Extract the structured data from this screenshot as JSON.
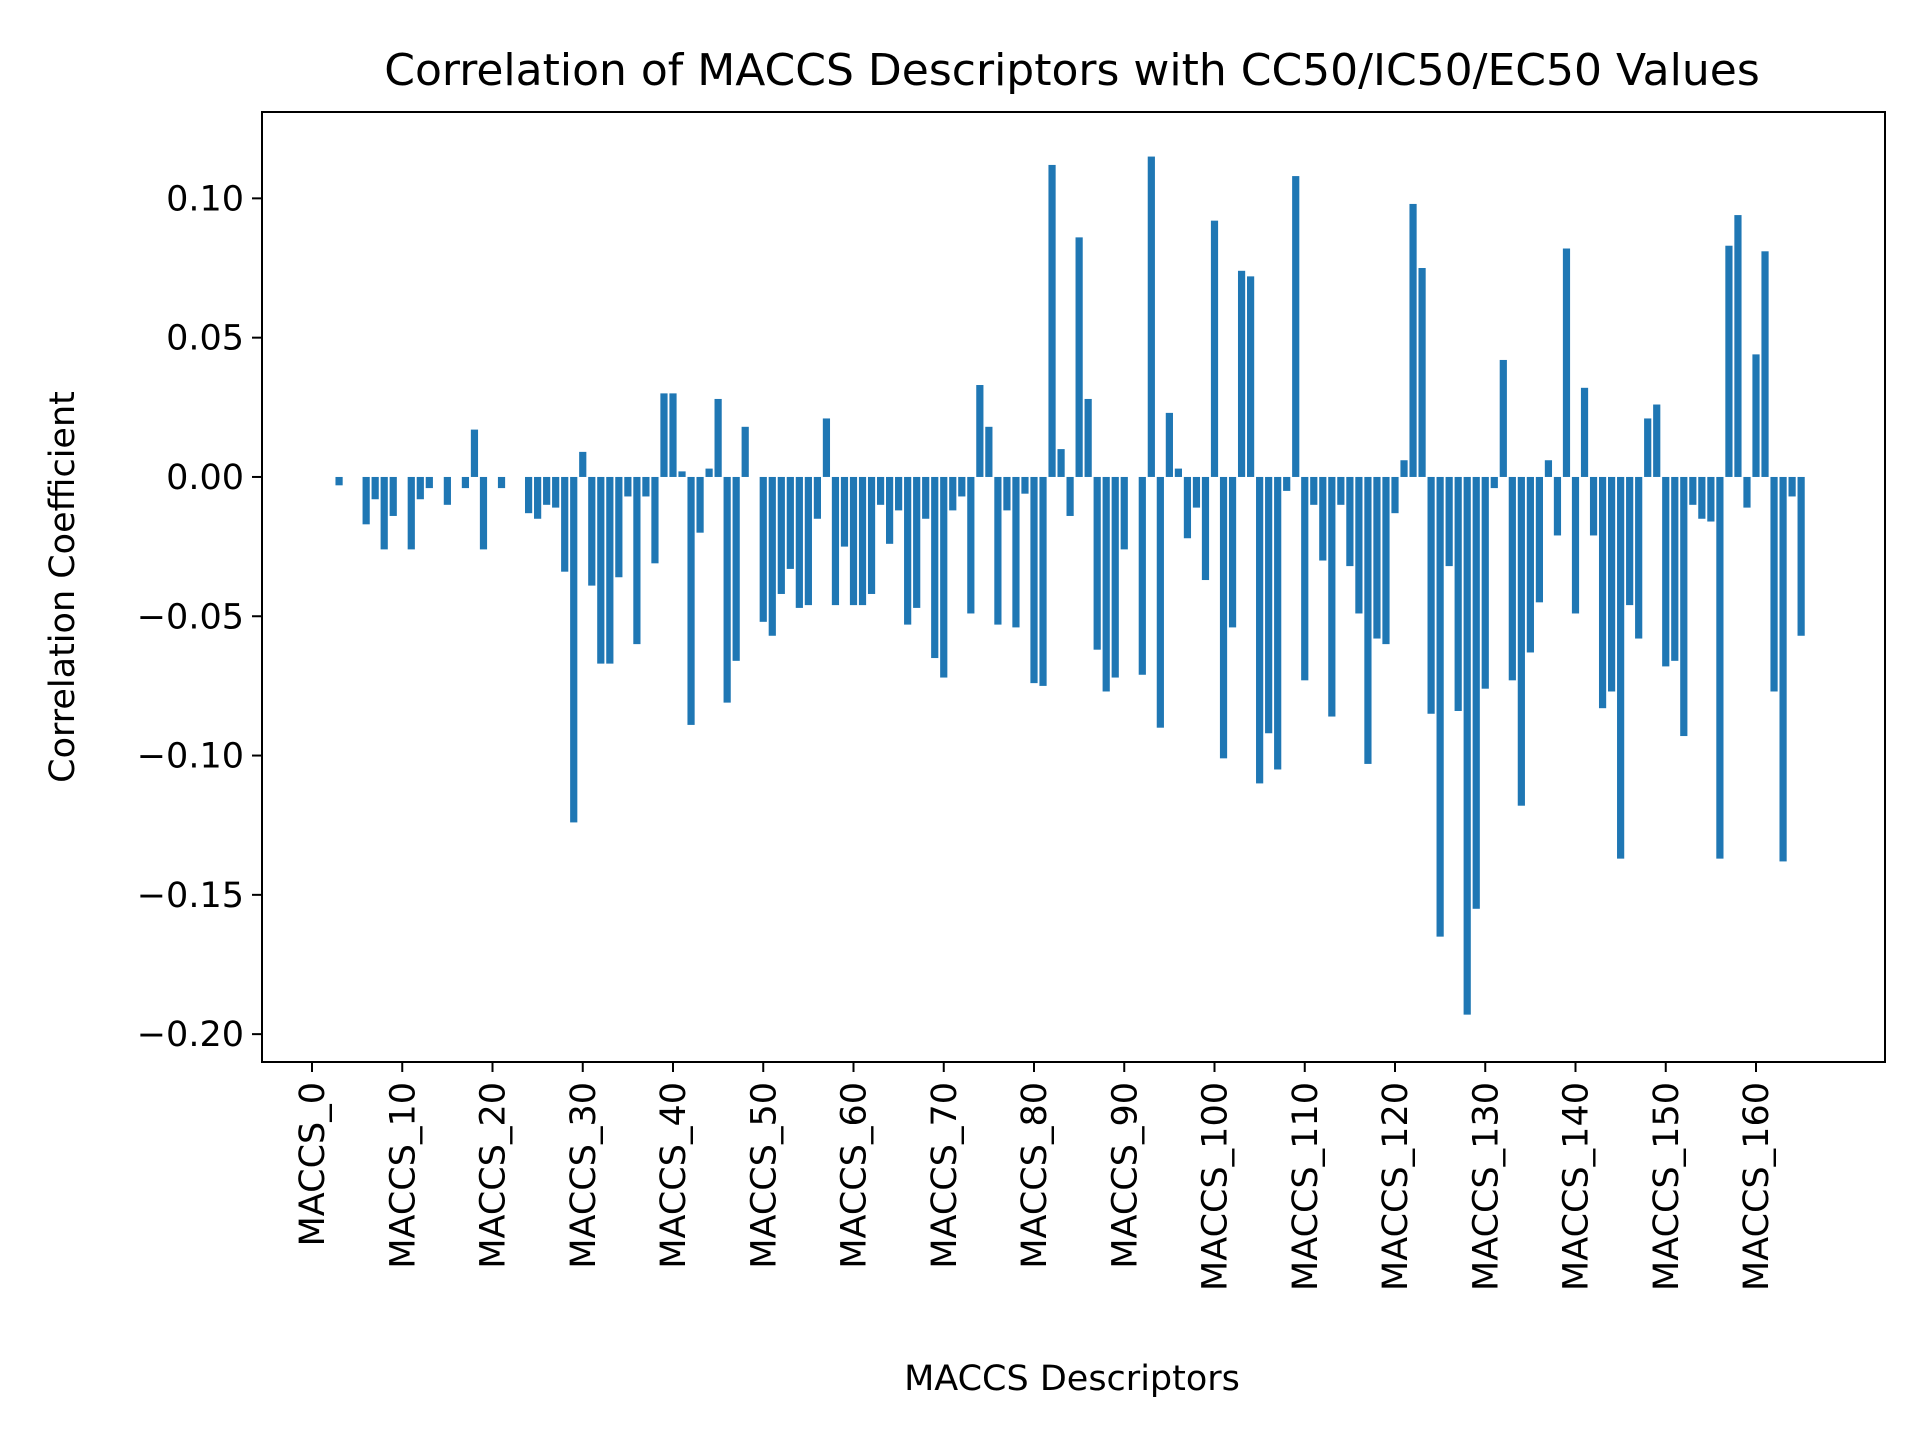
{
  "chart_data": {
    "type": "bar",
    "title": "Correlation of MACCS Descriptors with CC50/IC50/EC50 Values",
    "xlabel": "MACCS Descriptors",
    "ylabel": "Correlation Coefficient",
    "bar_color": "#1f77b4",
    "grid": false,
    "legend": "none",
    "category_prefix": "MACCS_",
    "category_count": 167,
    "ylim": [
      -0.21,
      0.131
    ],
    "yticks": [
      0.1,
      0.05,
      0.0,
      -0.05,
      -0.1,
      -0.15,
      -0.2
    ],
    "ytick_labels": [
      "0.10",
      "0.05",
      "0.00",
      "−0.05",
      "−0.10",
      "−0.15",
      "−0.20"
    ],
    "xtick_labels": [
      "MACCS_0",
      "MACCS_10",
      "MACCS_20",
      "MACCS_30",
      "MACCS_40",
      "MACCS_50",
      "MACCS_60",
      "MACCS_70",
      "MACCS_80",
      "MACCS_90",
      "MACCS_100",
      "MACCS_110",
      "MACCS_120",
      "MACCS_130",
      "MACCS_140",
      "MACCS_150",
      "MACCS_160"
    ],
    "values": [
      0.0,
      0.0,
      0.0,
      -0.003,
      0.0,
      0.0,
      -0.017,
      -0.008,
      -0.026,
      -0.014,
      0.0,
      -0.026,
      -0.008,
      -0.004,
      0.0,
      -0.01,
      0.0,
      -0.004,
      0.017,
      -0.026,
      0.0,
      -0.004,
      0.0,
      0.0,
      -0.013,
      -0.015,
      -0.01,
      -0.011,
      -0.034,
      -0.124,
      0.009,
      -0.039,
      -0.067,
      -0.067,
      -0.036,
      -0.007,
      -0.06,
      -0.007,
      -0.031,
      0.03,
      0.03,
      0.002,
      -0.089,
      -0.02,
      0.003,
      0.028,
      -0.081,
      -0.066,
      0.018,
      0.0,
      -0.052,
      -0.057,
      -0.042,
      -0.033,
      -0.047,
      -0.046,
      -0.015,
      0.021,
      -0.046,
      -0.025,
      -0.046,
      -0.046,
      -0.042,
      -0.01,
      -0.024,
      -0.012,
      -0.053,
      -0.047,
      -0.015,
      -0.065,
      -0.072,
      -0.012,
      -0.007,
      -0.049,
      0.033,
      0.018,
      -0.053,
      -0.012,
      -0.054,
      -0.006,
      -0.074,
      -0.075,
      0.112,
      0.01,
      -0.014,
      0.086,
      0.028,
      -0.062,
      -0.077,
      -0.072,
      -0.026,
      0.0,
      -0.071,
      0.115,
      -0.09,
      0.023,
      0.003,
      -0.022,
      -0.011,
      -0.037,
      0.092,
      -0.101,
      -0.054,
      0.074,
      0.072,
      -0.11,
      -0.092,
      -0.105,
      -0.005,
      0.108,
      -0.073,
      -0.01,
      -0.03,
      -0.086,
      -0.01,
      -0.032,
      -0.049,
      -0.103,
      -0.058,
      -0.06,
      -0.013,
      0.006,
      0.098,
      0.075,
      -0.085,
      -0.165,
      -0.032,
      -0.084,
      -0.193,
      -0.155,
      -0.076,
      -0.004,
      0.042,
      -0.073,
      -0.118,
      -0.063,
      -0.045,
      0.006,
      -0.021,
      0.082,
      -0.049,
      0.032,
      -0.021,
      -0.083,
      -0.077,
      -0.137,
      -0.046,
      -0.058,
      0.021,
      0.026,
      -0.068,
      -0.066,
      -0.093,
      -0.01,
      -0.015,
      -0.016,
      -0.137,
      0.083,
      0.094,
      -0.011,
      0.044,
      0.081,
      -0.077,
      -0.138,
      -0.007,
      -0.057,
      0.0
    ]
  }
}
